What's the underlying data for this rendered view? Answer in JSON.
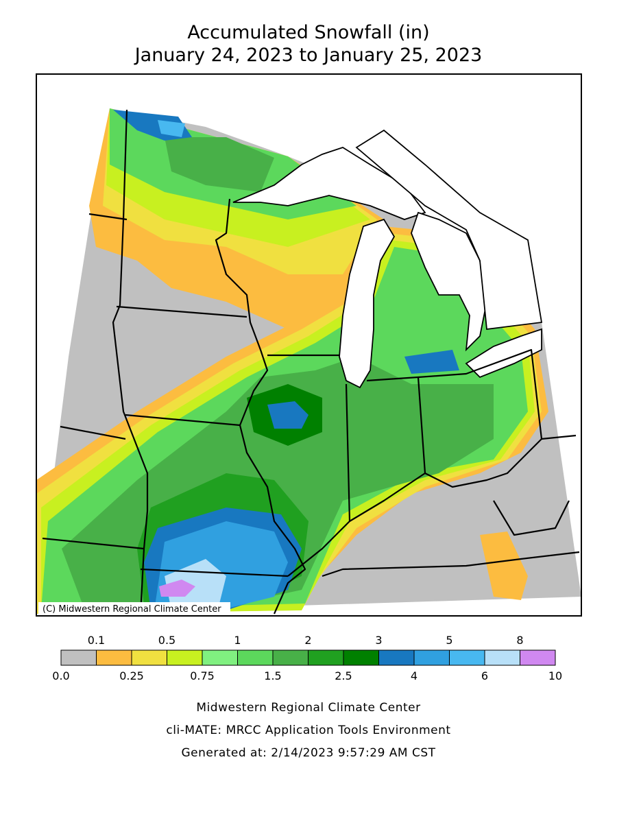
{
  "title": "Accumulated Snowfall (in)",
  "subtitle": "January 24, 2023 to January 25, 2023",
  "map": {
    "credit": "(C) Midwestern Regional Climate Center"
  },
  "legend": {
    "labels": [
      "0.0",
      "0.1",
      "0.25",
      "0.5",
      "0.75",
      "1",
      "1.5",
      "2",
      "2.5",
      "3",
      "4",
      "5",
      "6",
      "8",
      "10"
    ],
    "colors": [
      "#c0c0c0",
      "#fcbc40",
      "#f0e040",
      "#c8f020",
      "#80f080",
      "#5cd85c",
      "#48b048",
      "#20a020",
      "#008000",
      "#1878c0",
      "#30a0e0",
      "#48b8f0",
      "#b8e0f8",
      "#d088f0"
    ]
  },
  "footer": [
    "Midwestern Regional Climate Center",
    "cli-MATE: MRCC Application Tools Environment",
    "Generated at: 2/14/2023 9:57:29 AM CST"
  ]
}
